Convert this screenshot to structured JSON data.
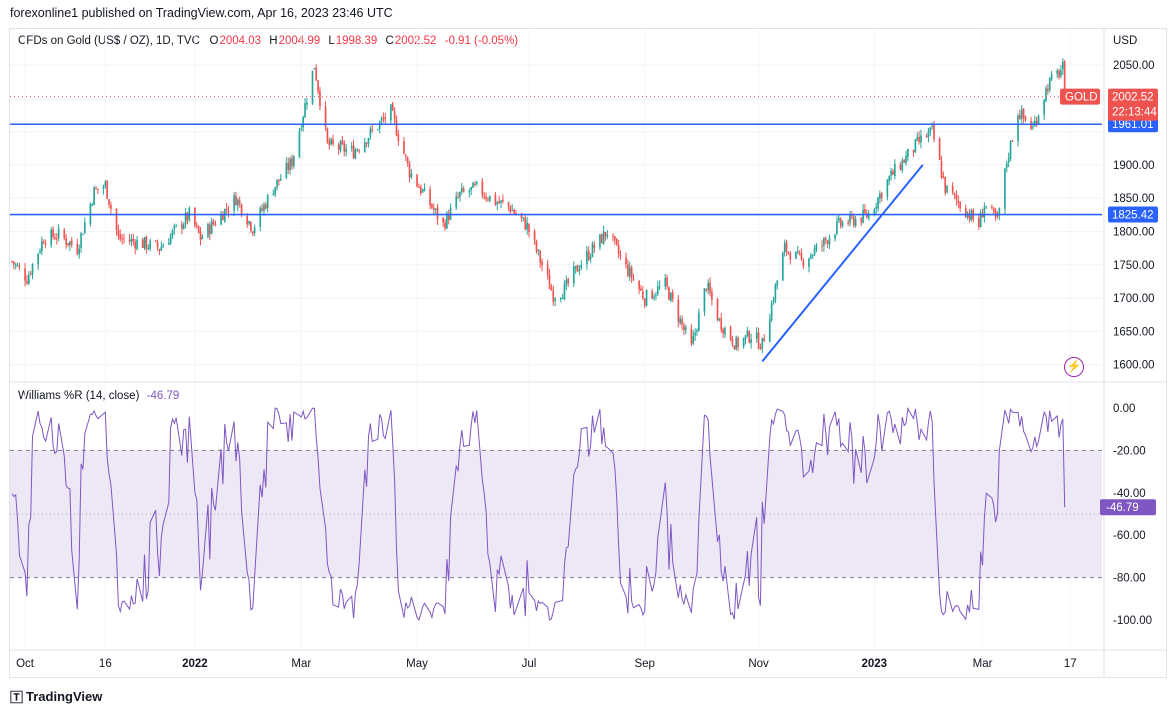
{
  "header": {
    "publish_line": "forexonline1 published on TradingView.com, Apr 16, 2023 23:46 UTC"
  },
  "legend": {
    "symbol": "CFDs on Gold (US$ / OZ), 1D, TVC",
    "o_label": "O",
    "o_value": "2004.03",
    "h_label": "H",
    "h_value": "2004.99",
    "l_label": "L",
    "l_value": "1998.39",
    "c_label": "C",
    "c_value": "2002.52",
    "change": "-0.91 (-0.05%)"
  },
  "wr_legend": {
    "name": "Williams %R (14, close)",
    "value": "-46.79"
  },
  "footer": {
    "brand": "TradingView"
  },
  "colors": {
    "up": "#26a69a",
    "down": "#ef5350",
    "hline": "#2962ff",
    "trendline": "#2962ff",
    "wr_line": "#7e57c2",
    "wr_band": "#ede7f6"
  },
  "chart_data": [
    {
      "type": "candlestick",
      "symbol": "GOLD",
      "currency": "USD",
      "yticks": [
        1600,
        1650,
        1700,
        1750,
        1800,
        1850,
        1900,
        1950,
        2000,
        2050
      ],
      "ytick_labels": [
        "1600.00",
        "1650.00",
        "1700.00",
        "1750.00",
        "1800.00",
        "1850.00",
        "1900.00",
        "2050.00"
      ],
      "ylim": [
        1580,
        2080
      ],
      "x_labels": [
        "Oct",
        "16",
        "2022",
        "Mar",
        "May",
        "Jul",
        "Sep",
        "Nov",
        "2023",
        "Mar",
        "17"
      ],
      "price_path": [
        [
          "2021-09-27",
          1755
        ],
        [
          "2021-10-05",
          1730
        ],
        [
          "2021-10-14",
          1790
        ],
        [
          "2021-10-22",
          1795
        ],
        [
          "2021-11-01",
          1775
        ],
        [
          "2021-11-10",
          1860
        ],
        [
          "2021-11-16",
          1870
        ],
        [
          "2021-11-23",
          1790
        ],
        [
          "2021-12-06",
          1782
        ],
        [
          "2021-12-15",
          1775
        ],
        [
          "2021-12-31",
          1825
        ],
        [
          "2022-01-06",
          1790
        ],
        [
          "2022-01-25",
          1850
        ],
        [
          "2022-02-03",
          1805
        ],
        [
          "2022-02-14",
          1865
        ],
        [
          "2022-02-24",
          1905
        ],
        [
          "2022-03-08",
          2050
        ],
        [
          "2022-03-15",
          1930
        ],
        [
          "2022-03-29",
          1920
        ],
        [
          "2022-04-18",
          1980
        ],
        [
          "2022-04-28",
          1890
        ],
        [
          "2022-05-16",
          1810
        ],
        [
          "2022-05-25",
          1855
        ],
        [
          "2022-06-03",
          1865
        ],
        [
          "2022-06-13",
          1845
        ],
        [
          "2022-06-20",
          1838
        ],
        [
          "2022-06-30",
          1808
        ],
        [
          "2022-07-14",
          1705
        ],
        [
          "2022-07-20",
          1712
        ],
        [
          "2022-07-28",
          1750
        ],
        [
          "2022-08-12",
          1800
        ],
        [
          "2022-08-19",
          1760
        ],
        [
          "2022-09-01",
          1700
        ],
        [
          "2022-09-12",
          1720
        ],
        [
          "2022-09-26",
          1625
        ],
        [
          "2022-10-04",
          1720
        ],
        [
          "2022-10-11",
          1665
        ],
        [
          "2022-10-20",
          1630
        ],
        [
          "2022-10-28",
          1645
        ],
        [
          "2022-11-03",
          1630
        ],
        [
          "2022-11-15",
          1775
        ],
        [
          "2022-11-24",
          1755
        ],
        [
          "2022-12-05",
          1780
        ],
        [
          "2022-12-14",
          1810
        ],
        [
          "2022-12-30",
          1825
        ],
        [
          "2023-01-10",
          1880
        ],
        [
          "2023-01-26",
          1935
        ],
        [
          "2023-02-02",
          1950
        ],
        [
          "2023-02-09",
          1865
        ],
        [
          "2023-02-27",
          1810
        ],
        [
          "2023-03-02",
          1840
        ],
        [
          "2023-03-09",
          1815
        ],
        [
          "2023-03-14",
          1905
        ],
        [
          "2023-03-20",
          1980
        ],
        [
          "2023-03-28",
          1955
        ],
        [
          "2023-04-05",
          2020
        ],
        [
          "2023-04-13",
          2045
        ],
        [
          "2023-04-14",
          2002.52
        ]
      ],
      "horizontal_lines": [
        1961.01,
        1825.42
      ],
      "horizontal_line_labels": [
        "1961.01",
        "1825.42"
      ],
      "trendline": {
        "from": [
          "2022-11-03",
          1605
        ],
        "to": [
          "2023-01-28",
          1900
        ]
      },
      "last_price": 2002.52,
      "last_price_tag": "GOLD",
      "last_price_label": "2002.52",
      "countdown": "22:13:44"
    },
    {
      "type": "line",
      "name": "Williams %R (14, close)",
      "yticks": [
        0,
        -20,
        -40,
        -60,
        -80,
        -100
      ],
      "ytick_labels": [
        "0.00",
        "-20.00",
        "-40.00",
        "-60.00",
        "-80.00",
        "-100.00"
      ],
      "ylim": [
        -100,
        0
      ],
      "bands": [
        -20,
        -80
      ],
      "last_value": -46.79,
      "last_value_label": "-46.79"
    }
  ]
}
